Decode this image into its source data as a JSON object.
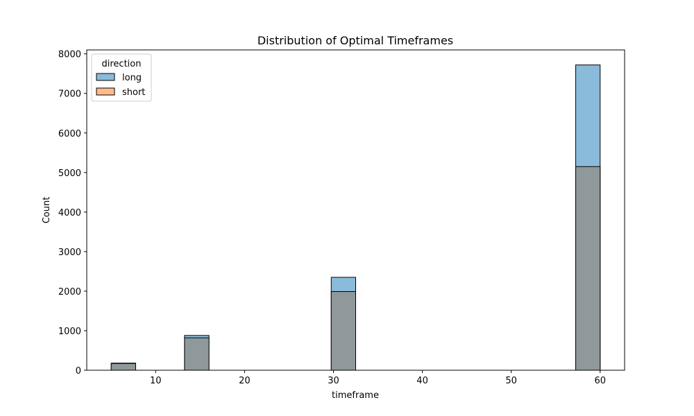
{
  "chart_data": {
    "type": "bar",
    "title": "Distribution of Optimal Timeframes",
    "xlabel": "timeframe",
    "ylabel": "Count",
    "xlim": [
      2.25,
      62.75
    ],
    "ylim": [
      0,
      8100
    ],
    "xticks": [
      10,
      20,
      30,
      40,
      50,
      60
    ],
    "yticks": [
      0,
      1000,
      2000,
      3000,
      4000,
      5000,
      6000,
      7000,
      8000
    ],
    "bins": [
      {
        "start": 5.0,
        "end": 7.75
      },
      {
        "start": 13.25,
        "end": 16.0
      },
      {
        "start": 29.75,
        "end": 32.5
      },
      {
        "start": 57.25,
        "end": 60.0
      }
    ],
    "legend": {
      "title": "direction",
      "placement": "top-left"
    },
    "series": [
      {
        "name": "long",
        "color": "#1f77b4",
        "values": [
          180,
          880,
          2350,
          7720
        ]
      },
      {
        "name": "short",
        "color": "#ff7f0e",
        "values": [
          170,
          820,
          1990,
          5150
        ]
      }
    ],
    "overlap_color": "#8f999c",
    "grid": false
  }
}
